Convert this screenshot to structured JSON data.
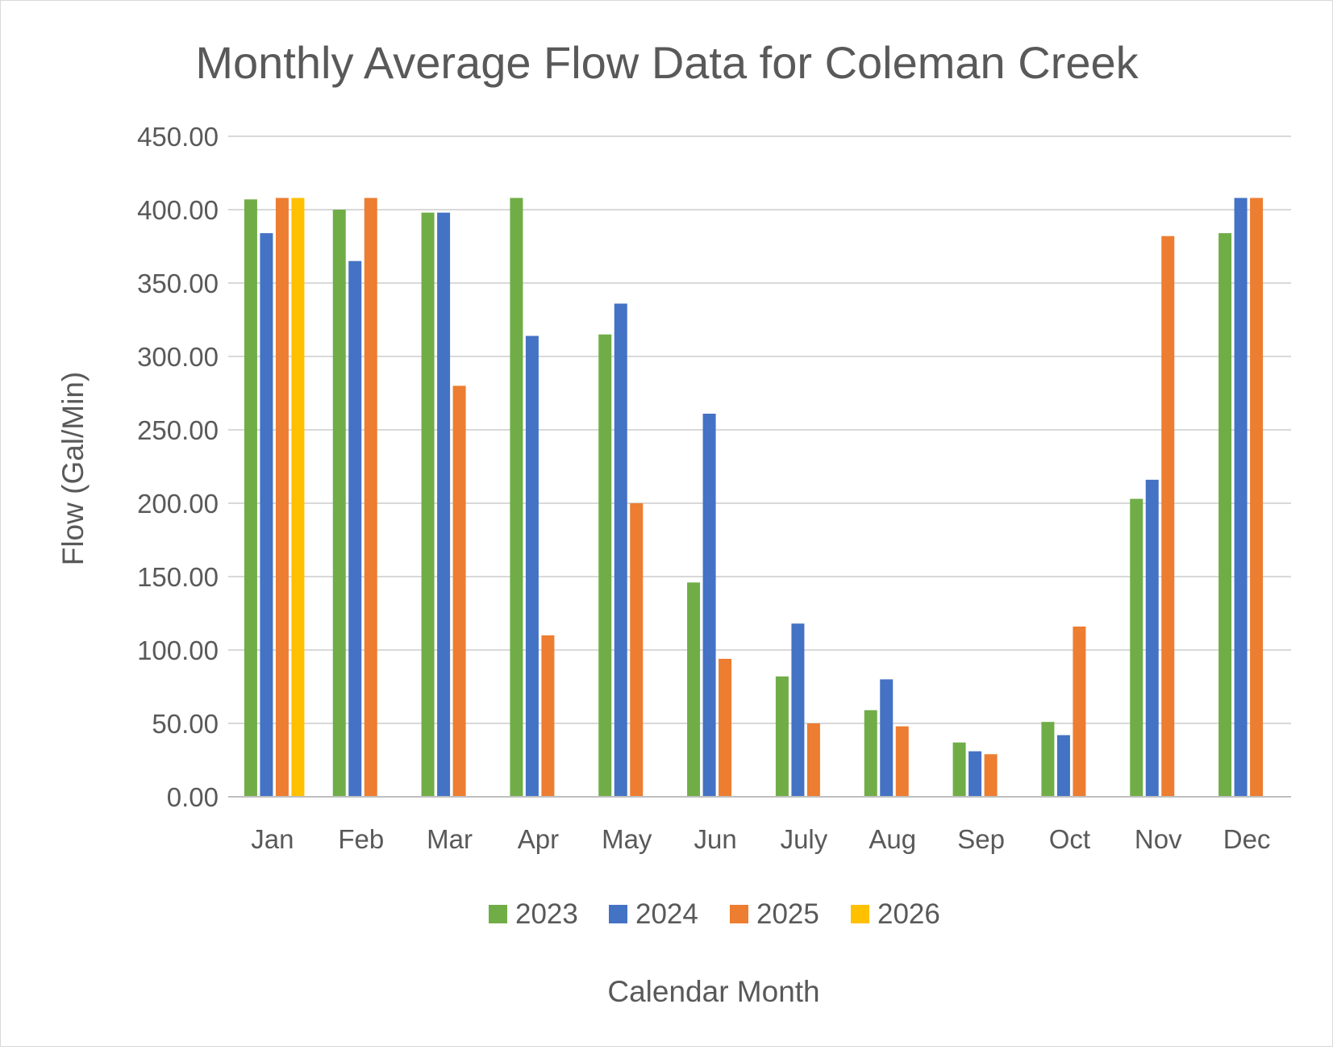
{
  "chart_data": {
    "type": "bar",
    "title": "Monthly Average Flow Data for Coleman Creek",
    "xlabel": "Calendar Month",
    "ylabel": "Flow (Gal/Min)",
    "ylim": [
      0,
      450
    ],
    "yticks": [
      "0.00",
      "50.00",
      "100.00",
      "150.00",
      "200.00",
      "250.00",
      "300.00",
      "350.00",
      "400.00",
      "450.00"
    ],
    "grid": true,
    "legend_position": "bottom",
    "categories": [
      "Jan",
      "Feb",
      "Mar",
      "Apr",
      "May",
      "Jun",
      "July",
      "Aug",
      "Sep",
      "Oct",
      "Nov",
      "Dec"
    ],
    "series": [
      {
        "name": "2023",
        "color": "#70ad47",
        "values": [
          407,
          400,
          398,
          408,
          315,
          146,
          82,
          59,
          37,
          51,
          203,
          384
        ]
      },
      {
        "name": "2024",
        "color": "#4472c4",
        "values": [
          384,
          365,
          398,
          314,
          336,
          261,
          118,
          80,
          31,
          42,
          216,
          408
        ]
      },
      {
        "name": "2025",
        "color": "#ed7d31",
        "values": [
          408,
          408,
          280,
          110,
          200,
          94,
          50,
          48,
          29,
          116,
          382,
          408
        ]
      },
      {
        "name": "2026",
        "color": "#ffc000",
        "values": [
          408,
          null,
          null,
          null,
          null,
          null,
          null,
          null,
          null,
          null,
          null,
          null
        ]
      }
    ]
  }
}
